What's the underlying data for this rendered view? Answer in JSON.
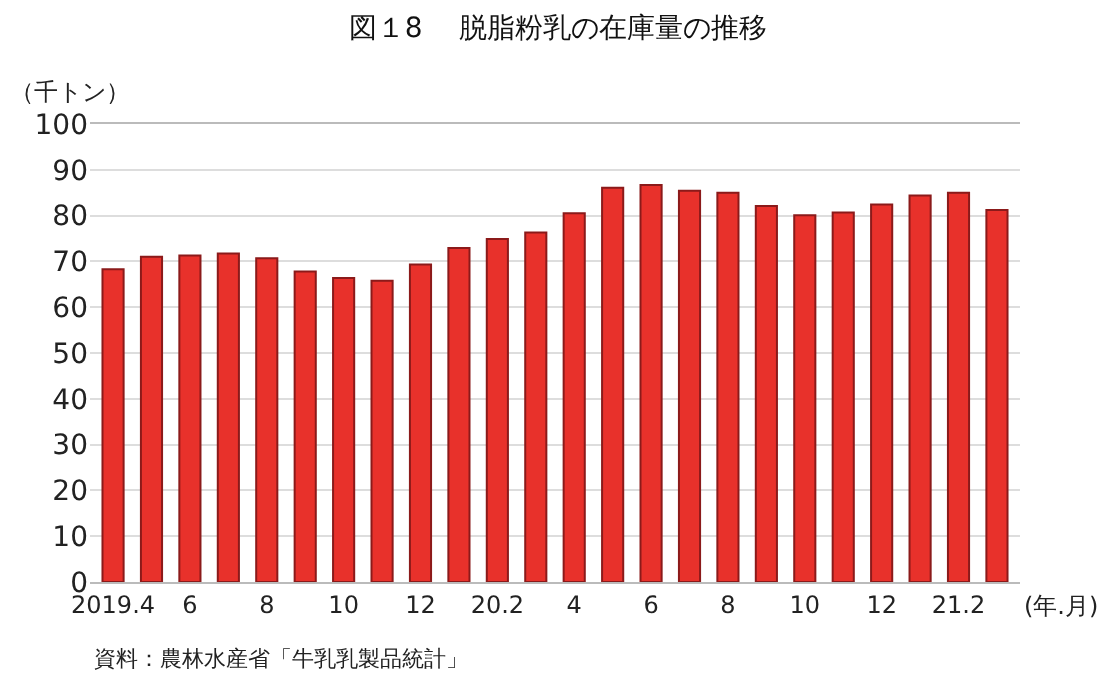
{
  "chart_data": {
    "type": "bar",
    "title": "図１8　 脱脂粉乳の在庫量の推移",
    "ylabel": "（千トン）",
    "xlabel": "(年.月)",
    "categories": [
      "2019.4",
      null,
      "6",
      null,
      "8",
      null,
      "10",
      null,
      "12",
      null,
      "20.2",
      null,
      "4",
      null,
      "6",
      null,
      "8",
      null,
      "10",
      null,
      "12",
      null,
      "21.2",
      null
    ],
    "values": [
      68.3,
      71.0,
      71.3,
      71.7,
      70.7,
      67.8,
      66.4,
      65.8,
      69.3,
      72.9,
      74.9,
      76.3,
      80.5,
      86.1,
      86.7,
      85.4,
      85.0,
      82.1,
      80.1,
      80.7,
      82.4,
      84.4,
      85.0,
      81.2
    ],
    "color": "#e8312b",
    "ylim": [
      0,
      100
    ],
    "yticks": [
      0,
      10,
      20,
      30,
      40,
      50,
      60,
      70,
      80,
      90,
      100
    ],
    "grid": "y",
    "annotations": [
      "資料：農林水産省「牛乳乳製品統計」"
    ]
  }
}
